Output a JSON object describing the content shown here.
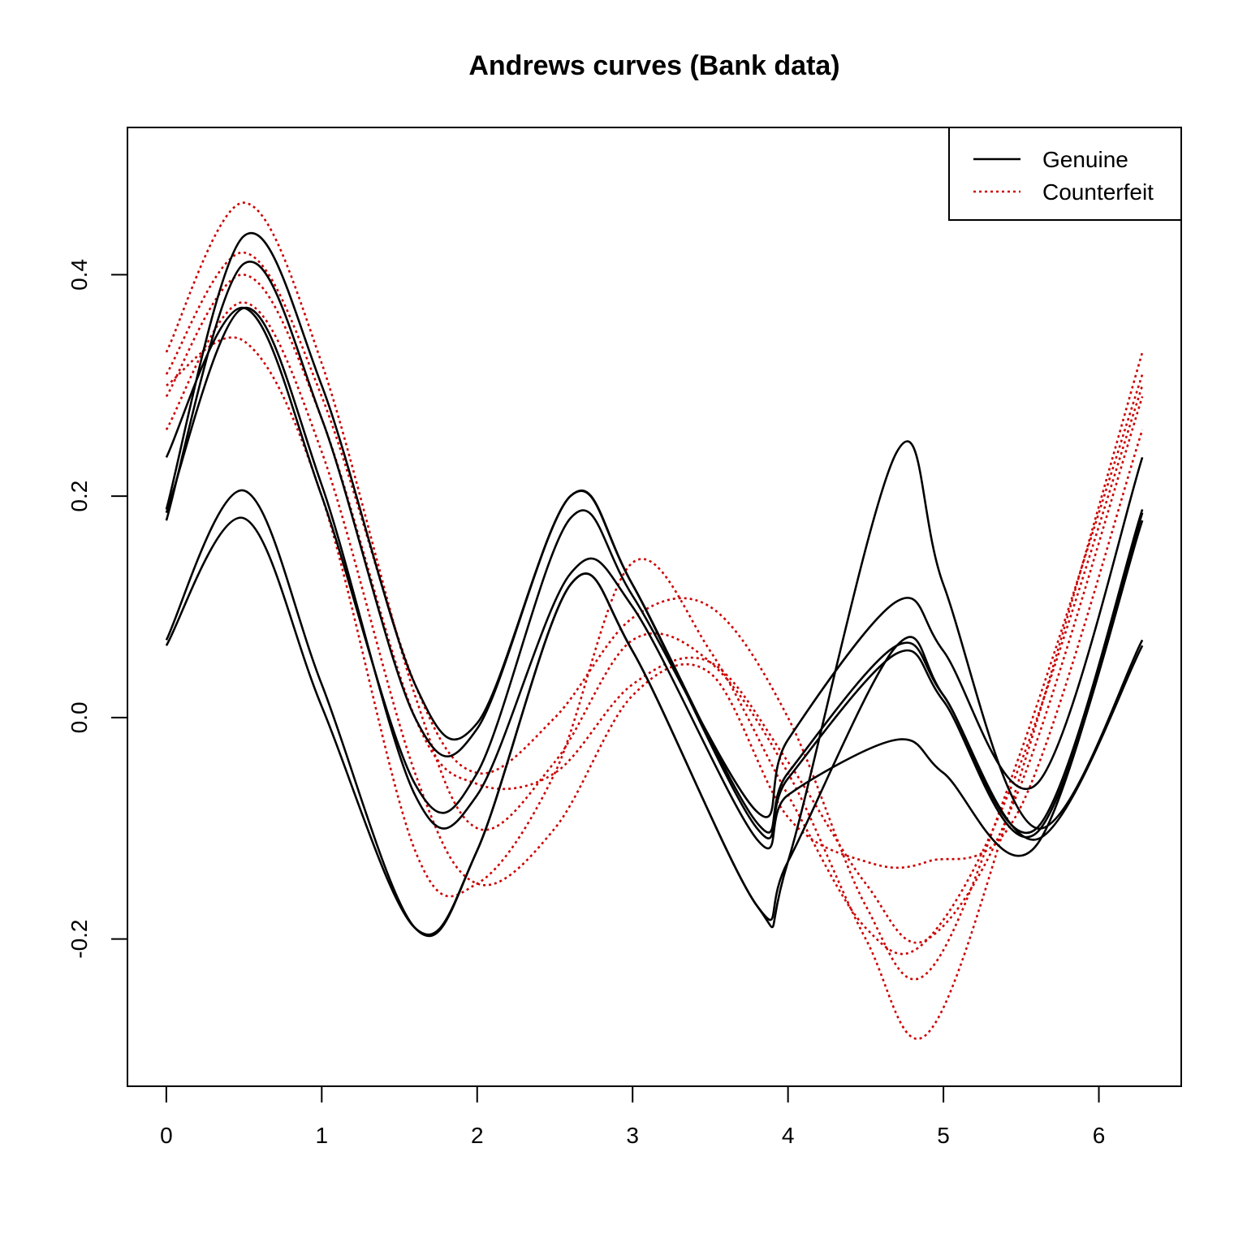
{
  "chart_data": {
    "type": "line",
    "title": "Andrews curves (Bank data)",
    "xlabel": "",
    "ylabel": "",
    "xlim": [
      -0.25,
      6.53
    ],
    "ylim": [
      -0.333,
      0.533
    ],
    "x_ticks": [
      0,
      1,
      2,
      3,
      4,
      5,
      6
    ],
    "x_tick_labels": [
      "0",
      "1",
      "2",
      "3",
      "4",
      "5",
      "6"
    ],
    "y_ticks": [
      -0.2,
      0.0,
      0.2,
      0.4
    ],
    "y_tick_labels": [
      "-0.2",
      "0.0",
      "0.2",
      "0.4"
    ],
    "grid": false,
    "legend": {
      "position": "top-right",
      "entries": [
        {
          "label": "Genuine",
          "color": "#000000",
          "line": "solid"
        },
        {
          "label": "Counterfeit",
          "color": "#cc0000",
          "line": "dotted"
        }
      ]
    },
    "t_range": [
      0,
      6.283
    ],
    "series": [
      {
        "group": "Genuine",
        "color": "#000000",
        "style": "solid",
        "x": [
          0,
          0.5,
          1.0,
          1.6,
          2.0,
          2.6,
          3.0,
          3.8,
          4.0,
          4.7,
          5.0,
          5.6,
          6.28
        ],
        "values": [
          0.188,
          0.435,
          0.3,
          0.03,
          -0.005,
          0.2,
          0.12,
          -0.095,
          -0.05,
          0.065,
          0.02,
          -0.1,
          0.188
        ]
      },
      {
        "group": "Genuine",
        "color": "#000000",
        "style": "solid",
        "x": [
          0,
          0.5,
          1.0,
          1.6,
          2.0,
          2.6,
          3.0,
          3.8,
          4.0,
          4.7,
          5.0,
          5.6,
          6.28
        ],
        "values": [
          0.178,
          0.41,
          0.27,
          0.0,
          -0.01,
          0.2,
          0.12,
          -0.1,
          -0.055,
          0.058,
          0.015,
          -0.104,
          0.178
        ]
      },
      {
        "group": "Genuine",
        "color": "#000000",
        "style": "solid",
        "x": [
          0,
          0.5,
          1.0,
          1.6,
          2.0,
          2.6,
          3.0,
          3.8,
          4.0,
          4.7,
          5.0,
          5.6,
          6.28
        ],
        "values": [
          0.235,
          0.37,
          0.2,
          -0.06,
          -0.05,
          0.18,
          0.11,
          -0.085,
          -0.02,
          0.105,
          0.06,
          -0.06,
          0.235
        ]
      },
      {
        "group": "Genuine",
        "color": "#000000",
        "style": "solid",
        "x": [
          0,
          0.5,
          1.0,
          1.6,
          2.0,
          2.6,
          3.0,
          3.8,
          4.0,
          4.7,
          5.0,
          5.6,
          6.28
        ],
        "values": [
          0.185,
          0.37,
          0.21,
          -0.07,
          -0.07,
          0.13,
          0.1,
          -0.11,
          -0.07,
          -0.02,
          -0.05,
          -0.115,
          0.185
        ]
      },
      {
        "group": "Genuine",
        "color": "#000000",
        "style": "solid",
        "x": [
          0,
          0.5,
          1.0,
          1.6,
          2.0,
          2.6,
          3.0,
          3.8,
          4.0,
          4.7,
          5.0,
          5.6,
          6.28
        ],
        "values": [
          0.07,
          0.205,
          0.03,
          -0.19,
          -0.12,
          0.12,
          0.06,
          -0.17,
          -0.13,
          0.24,
          0.12,
          -0.1,
          0.07
        ]
      },
      {
        "group": "Genuine",
        "color": "#000000",
        "style": "solid",
        "x": [
          0,
          0.5,
          1.0,
          1.6,
          2.0,
          2.6,
          3.0,
          3.8,
          4.0,
          4.7,
          5.0,
          5.6,
          6.28
        ],
        "values": [
          0.065,
          0.18,
          0.01,
          -0.19,
          -0.12,
          0.12,
          0.06,
          -0.17,
          -0.13,
          0.065,
          0.02,
          -0.11,
          0.065
        ]
      },
      {
        "group": "Counterfeit",
        "color": "#cc0000",
        "style": "dotted",
        "x": [
          0,
          0.5,
          1.0,
          1.6,
          2.0,
          2.5,
          3.0,
          3.5,
          4.0,
          4.5,
          4.9,
          5.5,
          6.28
        ],
        "values": [
          0.33,
          0.465,
          0.32,
          0.02,
          -0.1,
          -0.04,
          0.07,
          0.05,
          -0.05,
          -0.2,
          -0.285,
          -0.05,
          0.33
        ]
      },
      {
        "group": "Counterfeit",
        "color": "#cc0000",
        "style": "dotted",
        "x": [
          0,
          0.5,
          1.0,
          1.6,
          2.0,
          2.5,
          3.0,
          3.5,
          4.0,
          4.5,
          4.9,
          5.5,
          6.28
        ],
        "values": [
          0.31,
          0.42,
          0.29,
          0.03,
          -0.05,
          0.0,
          0.09,
          0.1,
          0.0,
          -0.17,
          -0.23,
          -0.03,
          0.31
        ]
      },
      {
        "group": "Counterfeit",
        "color": "#cc0000",
        "style": "dotted",
        "x": [
          0,
          0.5,
          1.0,
          1.6,
          2.0,
          2.5,
          3.0,
          3.5,
          4.0,
          4.5,
          4.9,
          5.5,
          6.28
        ],
        "values": [
          0.29,
          0.4,
          0.27,
          0.0,
          -0.06,
          -0.05,
          0.03,
          0.05,
          -0.04,
          -0.15,
          -0.2,
          -0.06,
          0.29
        ]
      },
      {
        "group": "Counterfeit",
        "color": "#cc0000",
        "style": "dotted",
        "x": [
          0,
          0.5,
          1.0,
          1.6,
          2.0,
          2.5,
          3.0,
          3.5,
          4.0,
          4.5,
          4.9,
          5.5,
          6.28
        ],
        "values": [
          0.26,
          0.375,
          0.24,
          -0.05,
          -0.15,
          -0.1,
          0.02,
          0.04,
          -0.09,
          -0.13,
          -0.13,
          -0.08,
          0.26
        ]
      },
      {
        "group": "Counterfeit",
        "color": "#cc0000",
        "style": "dotted",
        "x": [
          0,
          0.5,
          1.0,
          1.6,
          2.0,
          2.5,
          3.0,
          3.5,
          4.0,
          4.5,
          4.9,
          5.5,
          6.28
        ],
        "values": [
          0.3,
          0.34,
          0.2,
          -0.12,
          -0.15,
          -0.05,
          0.14,
          0.06,
          -0.07,
          -0.19,
          -0.2,
          -0.04,
          0.3
        ]
      }
    ]
  }
}
